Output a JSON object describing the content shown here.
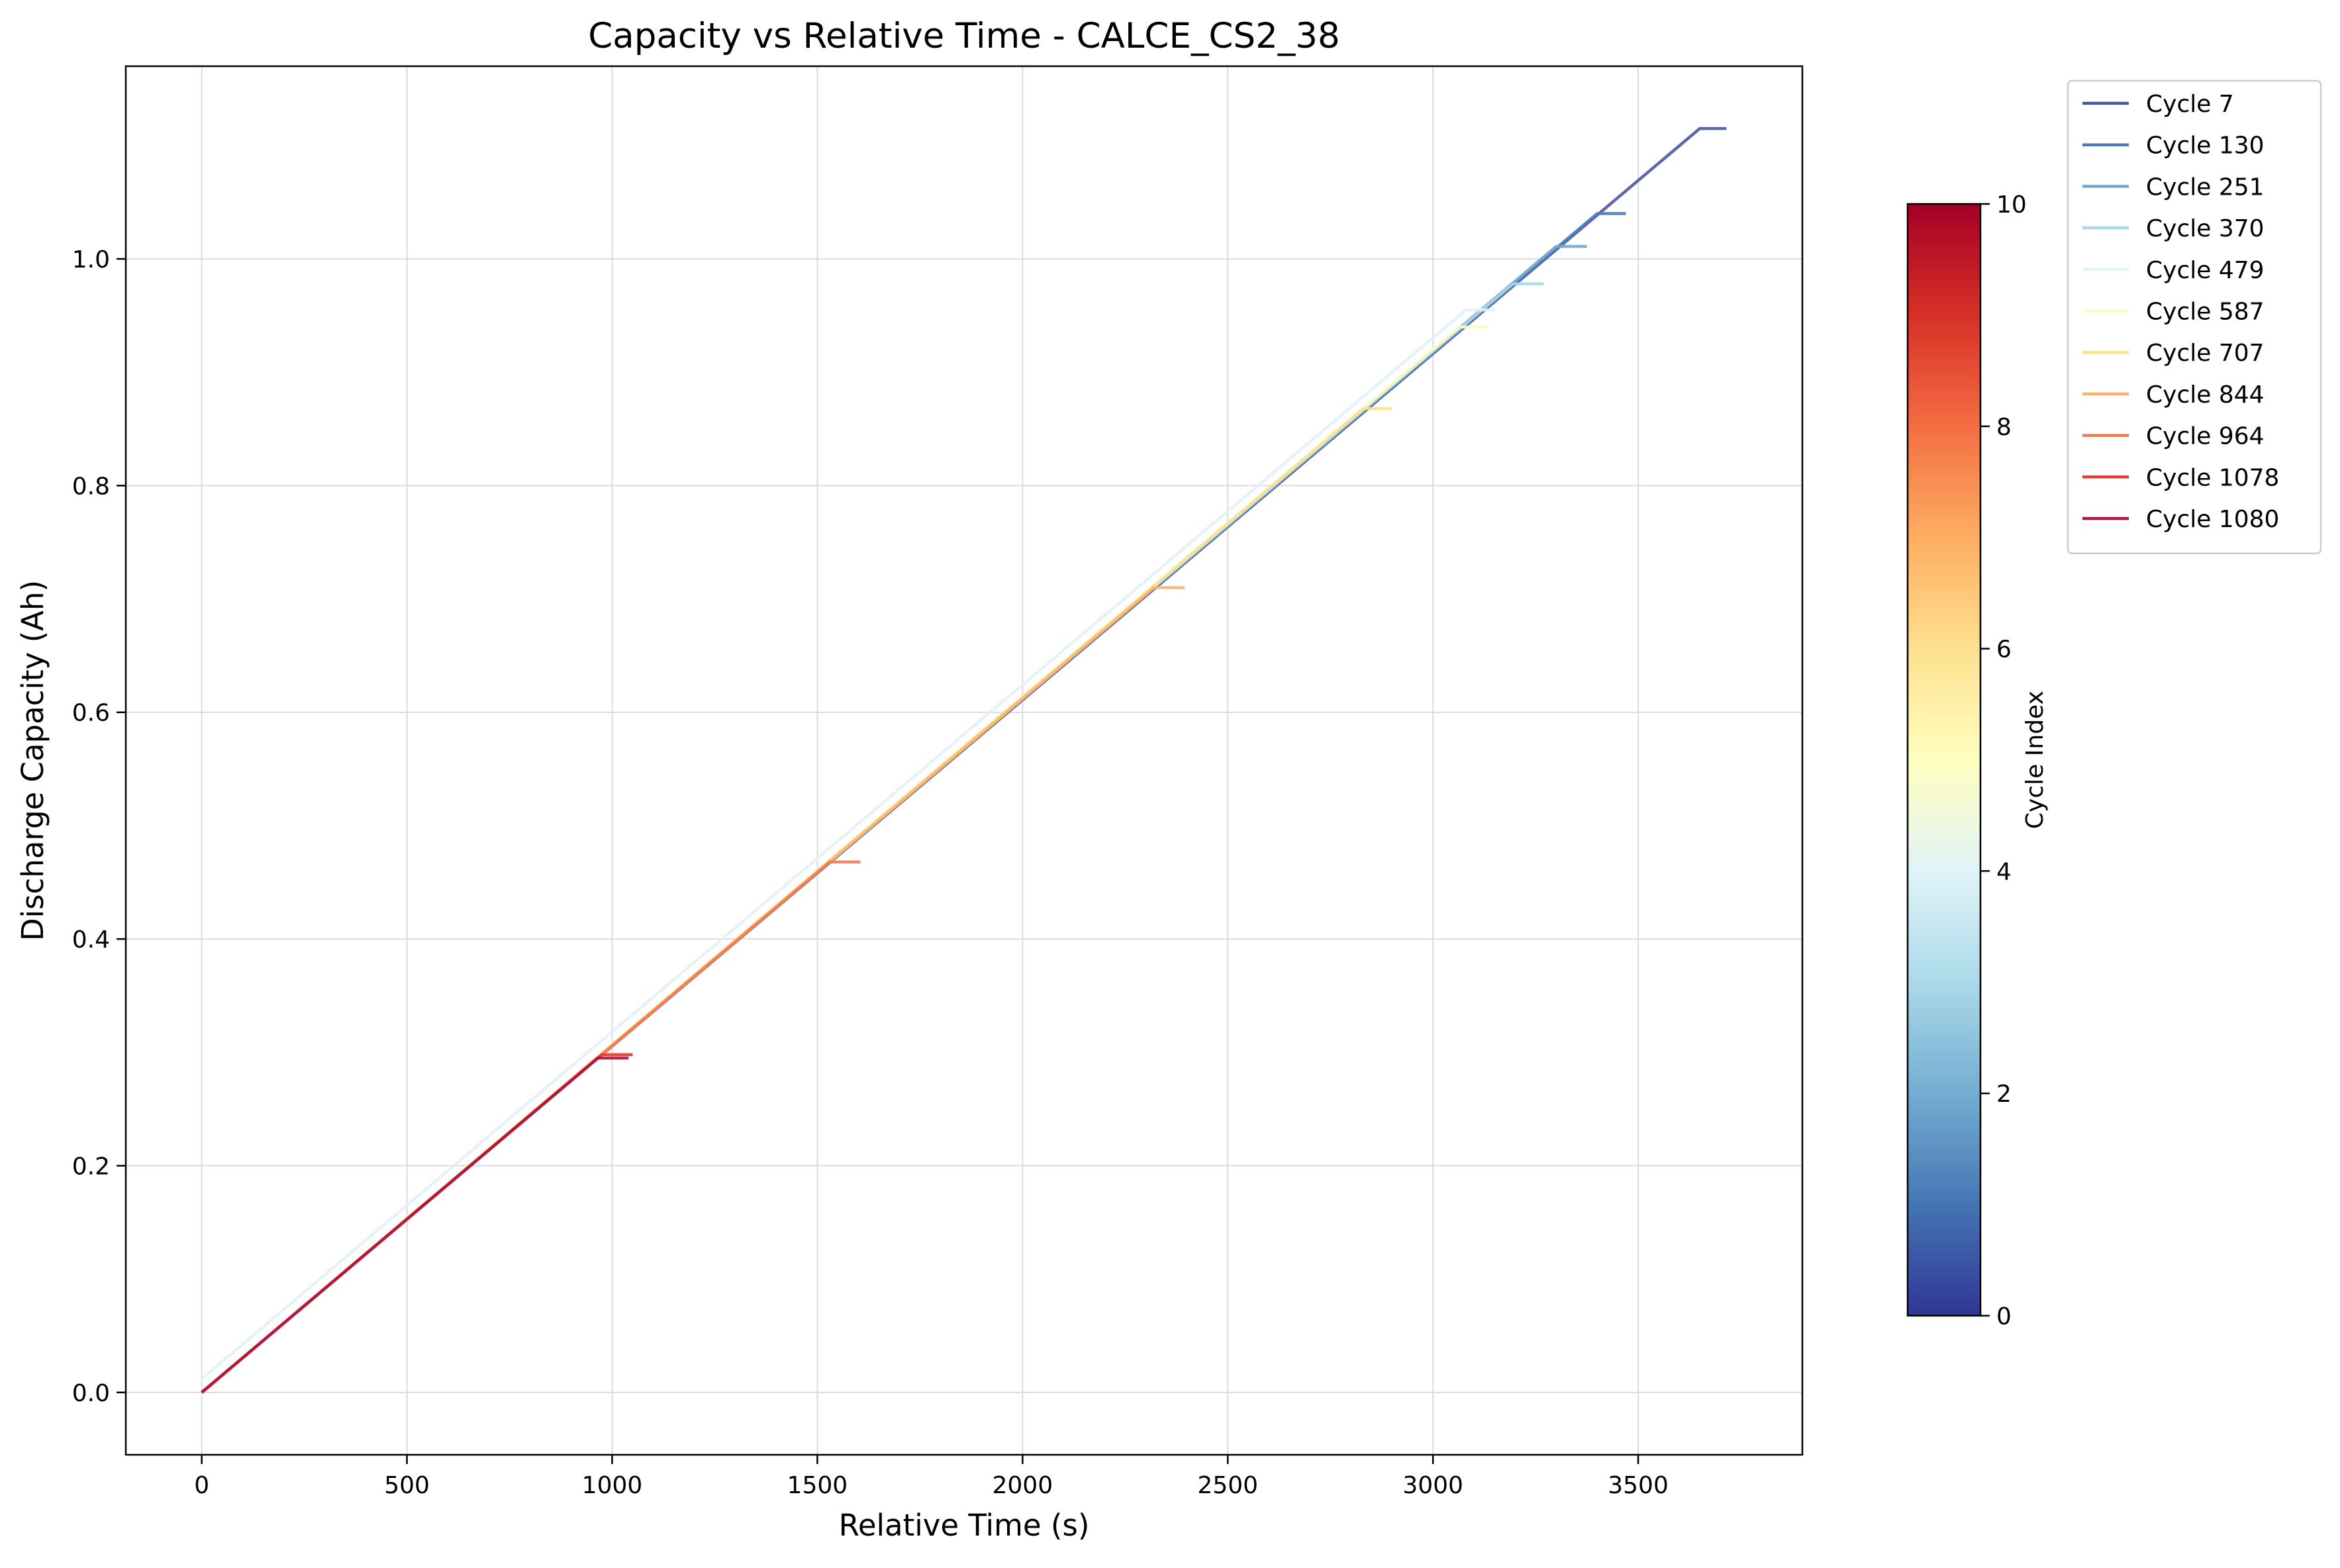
{
  "chart_data": {
    "type": "line",
    "title": "Capacity vs Relative Time - CALCE_CS2_38",
    "xlabel": "Relative Time (s)",
    "ylabel": "Discharge Capacity (Ah)",
    "xlim": [
      -185,
      3900
    ],
    "ylim": [
      -0.055,
      1.17
    ],
    "xticks": [
      0,
      500,
      1000,
      1500,
      2000,
      2500,
      3000,
      3500
    ],
    "yticks": [
      0.0,
      0.2,
      0.4,
      0.6,
      0.8,
      1.0
    ],
    "xtick_labels": [
      "0",
      "500",
      "1000",
      "1500",
      "2000",
      "2500",
      "3000",
      "3500"
    ],
    "ytick_labels": [
      "0.0",
      "0.2",
      "0.4",
      "0.6",
      "0.8",
      "1.0"
    ],
    "grid": true,
    "legend_position": "outside-top-right",
    "series": [
      {
        "name": "Cycle 7",
        "color": "#4a55a2",
        "x": [
          0,
          3650,
          3715
        ],
        "y": [
          0,
          1.115,
          1.115
        ]
      },
      {
        "name": "Cycle 130",
        "color": "#4d7bb6",
        "x": [
          0,
          3400,
          3470
        ],
        "y": [
          0,
          1.04,
          1.04
        ]
      },
      {
        "name": "Cycle 251",
        "color": "#72a8cf",
        "x": [
          0,
          3300,
          3375
        ],
        "y": [
          0,
          1.011,
          1.011
        ]
      },
      {
        "name": "Cycle 370",
        "color": "#a9d7e7",
        "x": [
          0,
          3195,
          3270
        ],
        "y": [
          0,
          0.978,
          0.978
        ]
      },
      {
        "name": "Cycle 479",
        "color": "#e2f2f6",
        "x": [
          0,
          3080,
          3150
        ],
        "y": [
          0.012,
          0.955,
          0.955
        ]
      },
      {
        "name": "Cycle 587",
        "color": "#fdfcbf",
        "x": [
          0,
          3065,
          3135
        ],
        "y": [
          0,
          0.94,
          0.94
        ]
      },
      {
        "name": "Cycle 707",
        "color": "#fde08b",
        "x": [
          0,
          2830,
          2900
        ],
        "y": [
          0,
          0.868,
          0.868
        ]
      },
      {
        "name": "Cycle 844",
        "color": "#fbb26a",
        "x": [
          0,
          2320,
          2395
        ],
        "y": [
          0,
          0.71,
          0.71
        ]
      },
      {
        "name": "Cycle 964",
        "color": "#f47b4e",
        "x": [
          0,
          1530,
          1605
        ],
        "y": [
          0,
          0.468,
          0.468
        ]
      },
      {
        "name": "Cycle 1078",
        "color": "#dc3e3b",
        "x": [
          0,
          975,
          1050
        ],
        "y": [
          0,
          0.298,
          0.298
        ]
      },
      {
        "name": "Cycle 1080",
        "color": "#b0133a",
        "x": [
          0,
          965,
          1040
        ],
        "y": [
          0,
          0.295,
          0.295
        ]
      }
    ],
    "colorbar": {
      "label": "Cycle Index",
      "min": 0,
      "max": 10,
      "ticks": [
        0,
        2,
        4,
        6,
        8,
        10
      ],
      "tick_labels": [
        "0",
        "2",
        "4",
        "6",
        "8",
        "10"
      ],
      "colormap": [
        "#313695",
        "#4575b4",
        "#74add1",
        "#abd9e9",
        "#e0f3f8",
        "#ffffbf",
        "#fee090",
        "#fdae61",
        "#f46d43",
        "#d73027",
        "#a50026"
      ]
    }
  }
}
